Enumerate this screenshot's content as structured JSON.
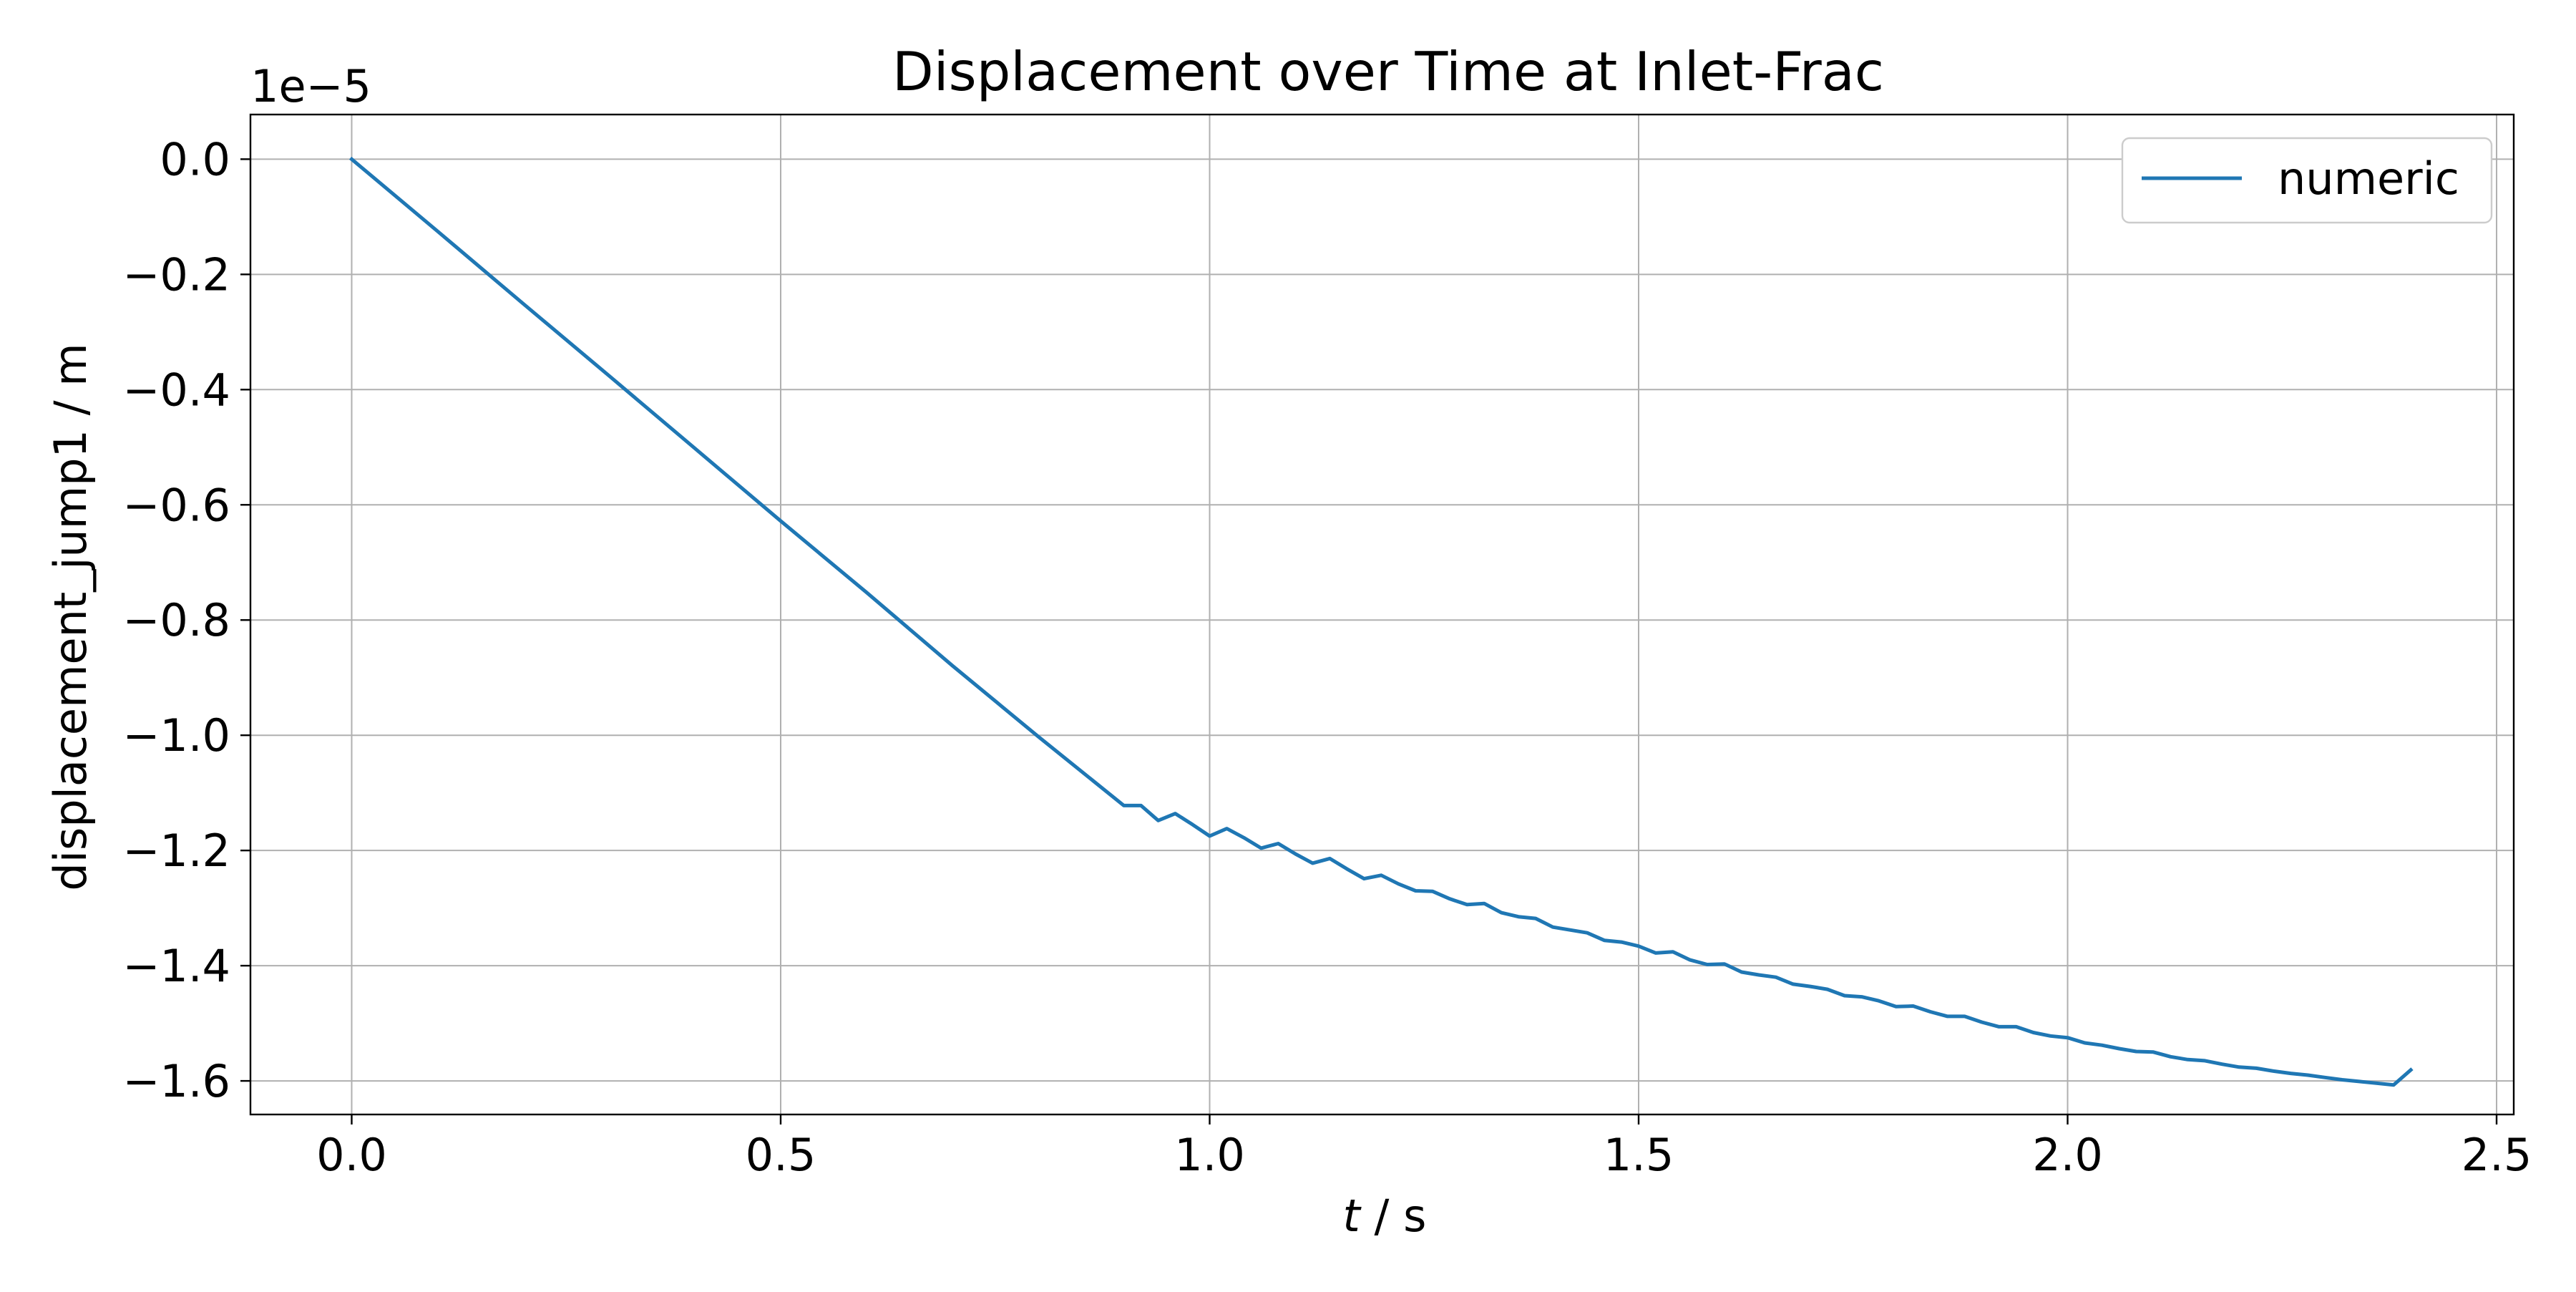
{
  "chart_data": {
    "type": "line",
    "title": "Displacement over Time at Inlet-Frac",
    "xlabel_italic": "t",
    "xlabel_rest": " / s",
    "ylabel": "displacement_jump1 / m",
    "y_offset_label": "1e−5",
    "y_scale": 1e-05,
    "xlim": [
      -0.118,
      2.52
    ],
    "ylim": [
      -1.6583,
      0.0775
    ],
    "x_ticks": [
      0.0,
      0.5,
      1.0,
      1.5,
      2.0,
      2.5
    ],
    "x_tick_labels": [
      "0.0",
      "0.5",
      "1.0",
      "1.5",
      "2.0",
      "2.5"
    ],
    "y_ticks": [
      0.0,
      -0.2,
      -0.4,
      -0.6,
      -0.8,
      -1.0,
      -1.2,
      -1.4,
      -1.6
    ],
    "y_tick_labels": [
      "0.0",
      "−0.2",
      "−0.4",
      "−0.6",
      "−0.8",
      "−1.0",
      "−1.2",
      "−1.4",
      "−1.6"
    ],
    "grid": true,
    "legend_position": "top-right",
    "series": [
      {
        "name": "numeric",
        "color": "#1f77b4",
        "x": [
          0.0,
          0.1,
          0.2,
          0.3,
          0.4,
          0.5,
          0.6,
          0.7,
          0.8,
          0.9,
          0.92,
          0.94,
          0.96,
          0.98,
          1.0,
          1.02,
          1.04,
          1.06,
          1.08,
          1.1,
          1.12,
          1.14,
          1.16,
          1.18,
          1.2,
          1.22,
          1.24,
          1.26,
          1.28,
          1.3,
          1.32,
          1.34,
          1.36,
          1.38,
          1.4,
          1.42,
          1.44,
          1.46,
          1.48,
          1.5,
          1.52,
          1.54,
          1.56,
          1.58,
          1.6,
          1.62,
          1.64,
          1.66,
          1.68,
          1.7,
          1.72,
          1.74,
          1.76,
          1.78,
          1.8,
          1.82,
          1.84,
          1.86,
          1.88,
          1.9,
          1.92,
          1.94,
          1.96,
          1.98,
          2.0,
          2.02,
          2.04,
          2.06,
          2.08,
          2.1,
          2.12,
          2.14,
          2.16,
          2.18,
          2.2,
          2.22,
          2.24,
          2.26,
          2.28,
          2.3,
          2.32,
          2.34,
          2.36,
          2.38,
          2.4
        ],
        "y": [
          0.0,
          -0.125,
          -0.251,
          -0.376,
          -0.502,
          -0.628,
          -0.752,
          -0.879,
          -1.002,
          -1.122,
          -1.122,
          -1.148,
          -1.136,
          -1.155,
          -1.175,
          -1.162,
          -1.178,
          -1.196,
          -1.188,
          -1.206,
          -1.222,
          -1.214,
          -1.232,
          -1.249,
          -1.243,
          -1.258,
          -1.27,
          -1.271,
          -1.284,
          -1.294,
          -1.292,
          -1.308,
          -1.315,
          -1.318,
          -1.333,
          -1.338,
          -1.343,
          -1.356,
          -1.359,
          -1.366,
          -1.378,
          -1.376,
          -1.39,
          -1.398,
          -1.397,
          -1.411,
          -1.416,
          -1.42,
          -1.432,
          -1.436,
          -1.441,
          -1.452,
          -1.454,
          -1.461,
          -1.471,
          -1.47,
          -1.48,
          -1.488,
          -1.488,
          -1.498,
          -1.506,
          -1.506,
          -1.516,
          -1.522,
          -1.525,
          -1.534,
          -1.538,
          -1.544,
          -1.549,
          -1.55,
          -1.558,
          -1.563,
          -1.565,
          -1.571,
          -1.576,
          -1.578,
          -1.583,
          -1.587,
          -1.59,
          -1.594,
          -1.598,
          -1.601,
          -1.604,
          -1.607,
          -1.581
        ]
      }
    ]
  }
}
